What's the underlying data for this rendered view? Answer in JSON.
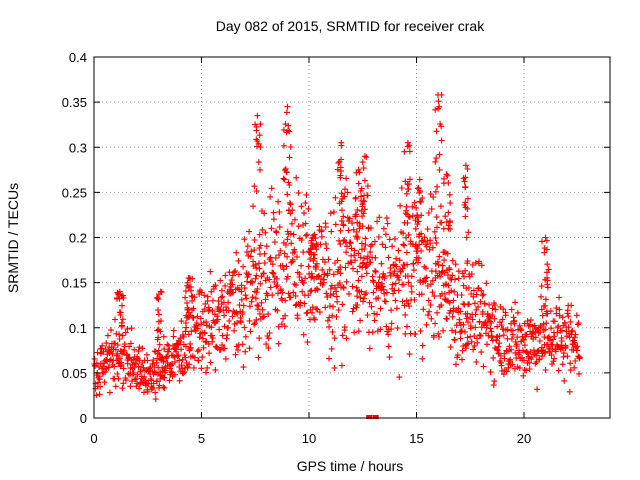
{
  "chart_data": {
    "type": "scatter",
    "title": "Day 082 of 2015, SRMTID for receiver crak",
    "xlabel": "GPS time / hours",
    "ylabel": "SRMTID / TECUs",
    "xlim": [
      0,
      24
    ],
    "ylim": [
      0,
      0.4
    ],
    "x_ticks": [
      0,
      5,
      10,
      15,
      20
    ],
    "y_ticks": [
      0,
      0.05,
      0.1,
      0.15,
      0.2,
      0.25,
      0.3,
      0.35,
      0.4
    ],
    "x_tick_labels": [
      "0",
      "5",
      "10",
      "15",
      "20"
    ],
    "y_tick_labels": [
      "0",
      "0.05",
      "0.1",
      "0.15",
      "0.2",
      "0.25",
      "0.3",
      "0.35",
      "0.4"
    ],
    "grid": true,
    "marker": "+",
    "marker_color": "#ff0000",
    "series": [
      {
        "name": "SRMTID",
        "x_range": [
          0,
          22.6
        ],
        "trend": [
          [
            0.0,
            0.05
          ],
          [
            1.0,
            0.07
          ],
          [
            2.0,
            0.055
          ],
          [
            3.0,
            0.05
          ],
          [
            4.0,
            0.07
          ],
          [
            4.5,
            0.1
          ],
          [
            5.0,
            0.1
          ],
          [
            6.0,
            0.11
          ],
          [
            7.0,
            0.13
          ],
          [
            8.0,
            0.16
          ],
          [
            9.0,
            0.18
          ],
          [
            10.0,
            0.16
          ],
          [
            11.0,
            0.15
          ],
          [
            12.0,
            0.18
          ],
          [
            13.0,
            0.15
          ],
          [
            14.0,
            0.15
          ],
          [
            15.0,
            0.17
          ],
          [
            16.0,
            0.16
          ],
          [
            17.0,
            0.12
          ],
          [
            18.0,
            0.11
          ],
          [
            19.0,
            0.09
          ],
          [
            20.0,
            0.08
          ],
          [
            21.0,
            0.09
          ],
          [
            22.0,
            0.09
          ],
          [
            22.6,
            0.08
          ]
        ],
        "peaks": [
          [
            7.6,
            0.335
          ],
          [
            9.0,
            0.345
          ],
          [
            10.2,
            0.2
          ],
          [
            11.5,
            0.305
          ],
          [
            12.3,
            0.275
          ],
          [
            14.6,
            0.305
          ],
          [
            16.0,
            0.358
          ],
          [
            16.4,
            0.27
          ],
          [
            17.3,
            0.28
          ],
          [
            21.0,
            0.2
          ],
          [
            4.4,
            0.155
          ],
          [
            1.2,
            0.14
          ],
          [
            3.1,
            0.14
          ],
          [
            12.6,
            0.29
          ],
          [
            15.1,
            0.255
          ]
        ],
        "zero_points": [
          [
            12.8,
            0.0
          ],
          [
            13.1,
            0.0
          ]
        ]
      }
    ]
  }
}
